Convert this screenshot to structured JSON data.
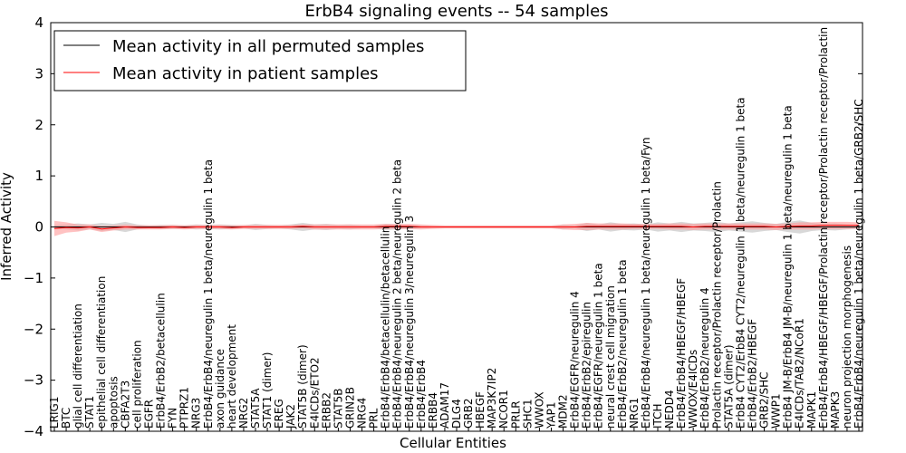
{
  "chart_data": {
    "type": "line",
    "title": "ErbB4 signaling events -- 54 samples",
    "xlabel": "Cellular Entities",
    "ylabel": "Inferred Activity",
    "ylim": [
      -4,
      4
    ],
    "yticks": [
      -4,
      -3,
      -2,
      -1,
      0,
      1,
      2,
      3,
      4
    ],
    "grid": false,
    "legend_position": "top-left",
    "colors": {
      "permuted": "#000000",
      "patient": "#ff0000",
      "patient_band": "#ff9999",
      "permuted_band": "#c8c8c8"
    },
    "categories": [
      "LRIG1",
      "BTC",
      "glial cell differentiation",
      "STAT1",
      "epithelial cell differentiation",
      "apoptosis",
      "CBFA2T3",
      "cell proliferation",
      "EGFR",
      "ErbB4/ErbB2/betacellulin",
      "FYN",
      "PTPRZ1",
      "NRG3",
      "ErbB4/ErbB4/neuregulin 1 beta/neuregulin 1 beta",
      "axon guidance",
      "heart development",
      "NRG2",
      "STAT5A",
      "STAT1 (dimer)",
      "EREG",
      "JAK2",
      "STAT5B (dimer)",
      "E4ICDs/ETO2",
      "ERBB2",
      "STAT5B",
      "GRIN2B",
      "NRG4",
      "PRL",
      "ErbB4/ErbB4/betacellulin/betacellulin",
      "ErbB4/ErbB4/neuregulin 2 beta/neuregulin 2 beta",
      "ErbB4/ErbB4/neuregulin 3/neuregulin 3",
      "ErbB4/ErbB4",
      "ERBB4",
      "ADAM17",
      "DLG4",
      "GRB2",
      "HBEGF",
      "MAP3K7IP2",
      "NCOR1",
      "PRLR",
      "SHC1",
      "WWOX",
      "YAP1",
      "MDM2",
      "ErbB4/EGFR/neuregulin 4",
      "ErbB4/ErbB2/epiregulin",
      "ErbB4/EGFR/neuregulin 1 beta",
      "neural crest cell migration",
      "ErbB4/ErbB2/neuregulin 1 beta",
      "NRG1",
      "ErbB4/ErbB4/neuregulin 1 beta/neuregulin 1 beta/Fyn",
      "ITCH",
      "NEDD4",
      "ErbB4/ErbB4/HBEGF/HBEGF",
      "WWOX/E4ICDs",
      "ErbB4/ErbB2/neuregulin 4",
      "Prolactin receptor/Prolactin receptor/Prolactin",
      "STAT5A (dimer)",
      "ErbB4 CYT2/ErbB4 CYT2/neuregulin 1 beta/neuregulin 1 beta",
      "ErbB4/ErbB2/HBEGF",
      "GRB2/SHC",
      "WWP1",
      "ErbB4 JM-B/ErbB4 JM-B/neuregulin 1 beta/neuregulin 1 beta",
      "E4ICDs/TAB2/NCoR1",
      "MAPK1",
      "ErbB4/ErbB4/HBEGF/HBEGF/Prolactin receptor/Prolactin receptor/Prolactin",
      "MAPK3",
      "neuron projection morphogenesis",
      "ErbB4/ErbB4/neuregulin 1 beta/neuregulin 1 beta/GRB2/SHC"
    ],
    "series": [
      {
        "name": "Mean activity in all permuted samples",
        "values": [
          0.0,
          0.0,
          0.0,
          0.0,
          0.0,
          0.0,
          0.0,
          0.0,
          0.0,
          0.0,
          0.0,
          0.0,
          0.0,
          0.0,
          0.0,
          0.0,
          0.0,
          0.0,
          0.0,
          0.0,
          0.0,
          0.0,
          0.0,
          0.0,
          0.0,
          0.0,
          0.0,
          0.0,
          0.0,
          0.0,
          0.0,
          0.0,
          0.0,
          0.0,
          0.0,
          0.0,
          0.0,
          0.0,
          0.0,
          0.0,
          0.0,
          0.0,
          0.0,
          0.0,
          0.0,
          0.0,
          0.0,
          0.0,
          0.0,
          0.0,
          0.0,
          0.0,
          0.0,
          0.0,
          0.0,
          0.0,
          0.0,
          0.0,
          0.0,
          0.0,
          0.0,
          0.0,
          0.0,
          0.0,
          0.0,
          0.0,
          0.0,
          0.0,
          0.0
        ],
        "band": [
          0.04,
          0.05,
          0.07,
          0.05,
          0.08,
          0.06,
          0.1,
          0.05,
          0.03,
          0.04,
          0.04,
          0.03,
          0.05,
          0.04,
          0.05,
          0.04,
          0.03,
          0.06,
          0.04,
          0.03,
          0.05,
          0.08,
          0.05,
          0.06,
          0.04,
          0.05,
          0.03,
          0.03,
          0.06,
          0.05,
          0.04,
          0.03,
          0.02,
          0.02,
          0.02,
          0.02,
          0.02,
          0.02,
          0.02,
          0.02,
          0.02,
          0.02,
          0.02,
          0.05,
          0.03,
          0.08,
          0.05,
          0.09,
          0.06,
          0.07,
          0.05,
          0.09,
          0.07,
          0.1,
          0.07,
          0.08,
          0.1,
          0.07,
          0.09,
          0.11,
          0.08,
          0.06,
          0.1,
          0.13,
          0.08,
          0.06,
          0.07,
          0.05,
          0.04
        ]
      },
      {
        "name": "Mean activity in patient samples",
        "values": [
          -0.03,
          -0.01,
          -0.02,
          0.0,
          -0.04,
          -0.02,
          0.0,
          -0.01,
          -0.01,
          -0.01,
          0.0,
          -0.01,
          0.0,
          0.0,
          0.0,
          -0.01,
          0.0,
          0.0,
          0.0,
          0.0,
          0.0,
          0.01,
          0.0,
          0.0,
          0.0,
          0.0,
          0.0,
          0.0,
          0.01,
          0.01,
          0.01,
          0.0,
          0.0,
          0.0,
          0.0,
          0.0,
          0.0,
          0.0,
          0.0,
          0.0,
          0.0,
          0.0,
          0.0,
          0.0,
          0.0,
          0.01,
          0.01,
          0.01,
          0.01,
          0.01,
          0.01,
          0.01,
          0.01,
          0.01,
          0.0,
          0.01,
          0.01,
          0.01,
          0.01,
          0.01,
          0.01,
          0.0,
          0.01,
          0.02,
          0.02,
          0.03,
          0.03,
          0.03,
          0.03
        ],
        "band": [
          0.15,
          0.1,
          0.07,
          0.05,
          0.06,
          0.05,
          0.05,
          0.04,
          0.04,
          0.04,
          0.04,
          0.04,
          0.04,
          0.04,
          0.04,
          0.04,
          0.04,
          0.04,
          0.04,
          0.04,
          0.04,
          0.04,
          0.05,
          0.05,
          0.05,
          0.05,
          0.05,
          0.05,
          0.05,
          0.05,
          0.05,
          0.05,
          0.04,
          0.03,
          0.03,
          0.03,
          0.03,
          0.03,
          0.03,
          0.03,
          0.03,
          0.03,
          0.03,
          0.05,
          0.06,
          0.07,
          0.06,
          0.06,
          0.06,
          0.05,
          0.05,
          0.05,
          0.06,
          0.06,
          0.06,
          0.06,
          0.06,
          0.06,
          0.06,
          0.06,
          0.06,
          0.06,
          0.06,
          0.07,
          0.07,
          0.07,
          0.07,
          0.07,
          0.06
        ]
      }
    ]
  }
}
